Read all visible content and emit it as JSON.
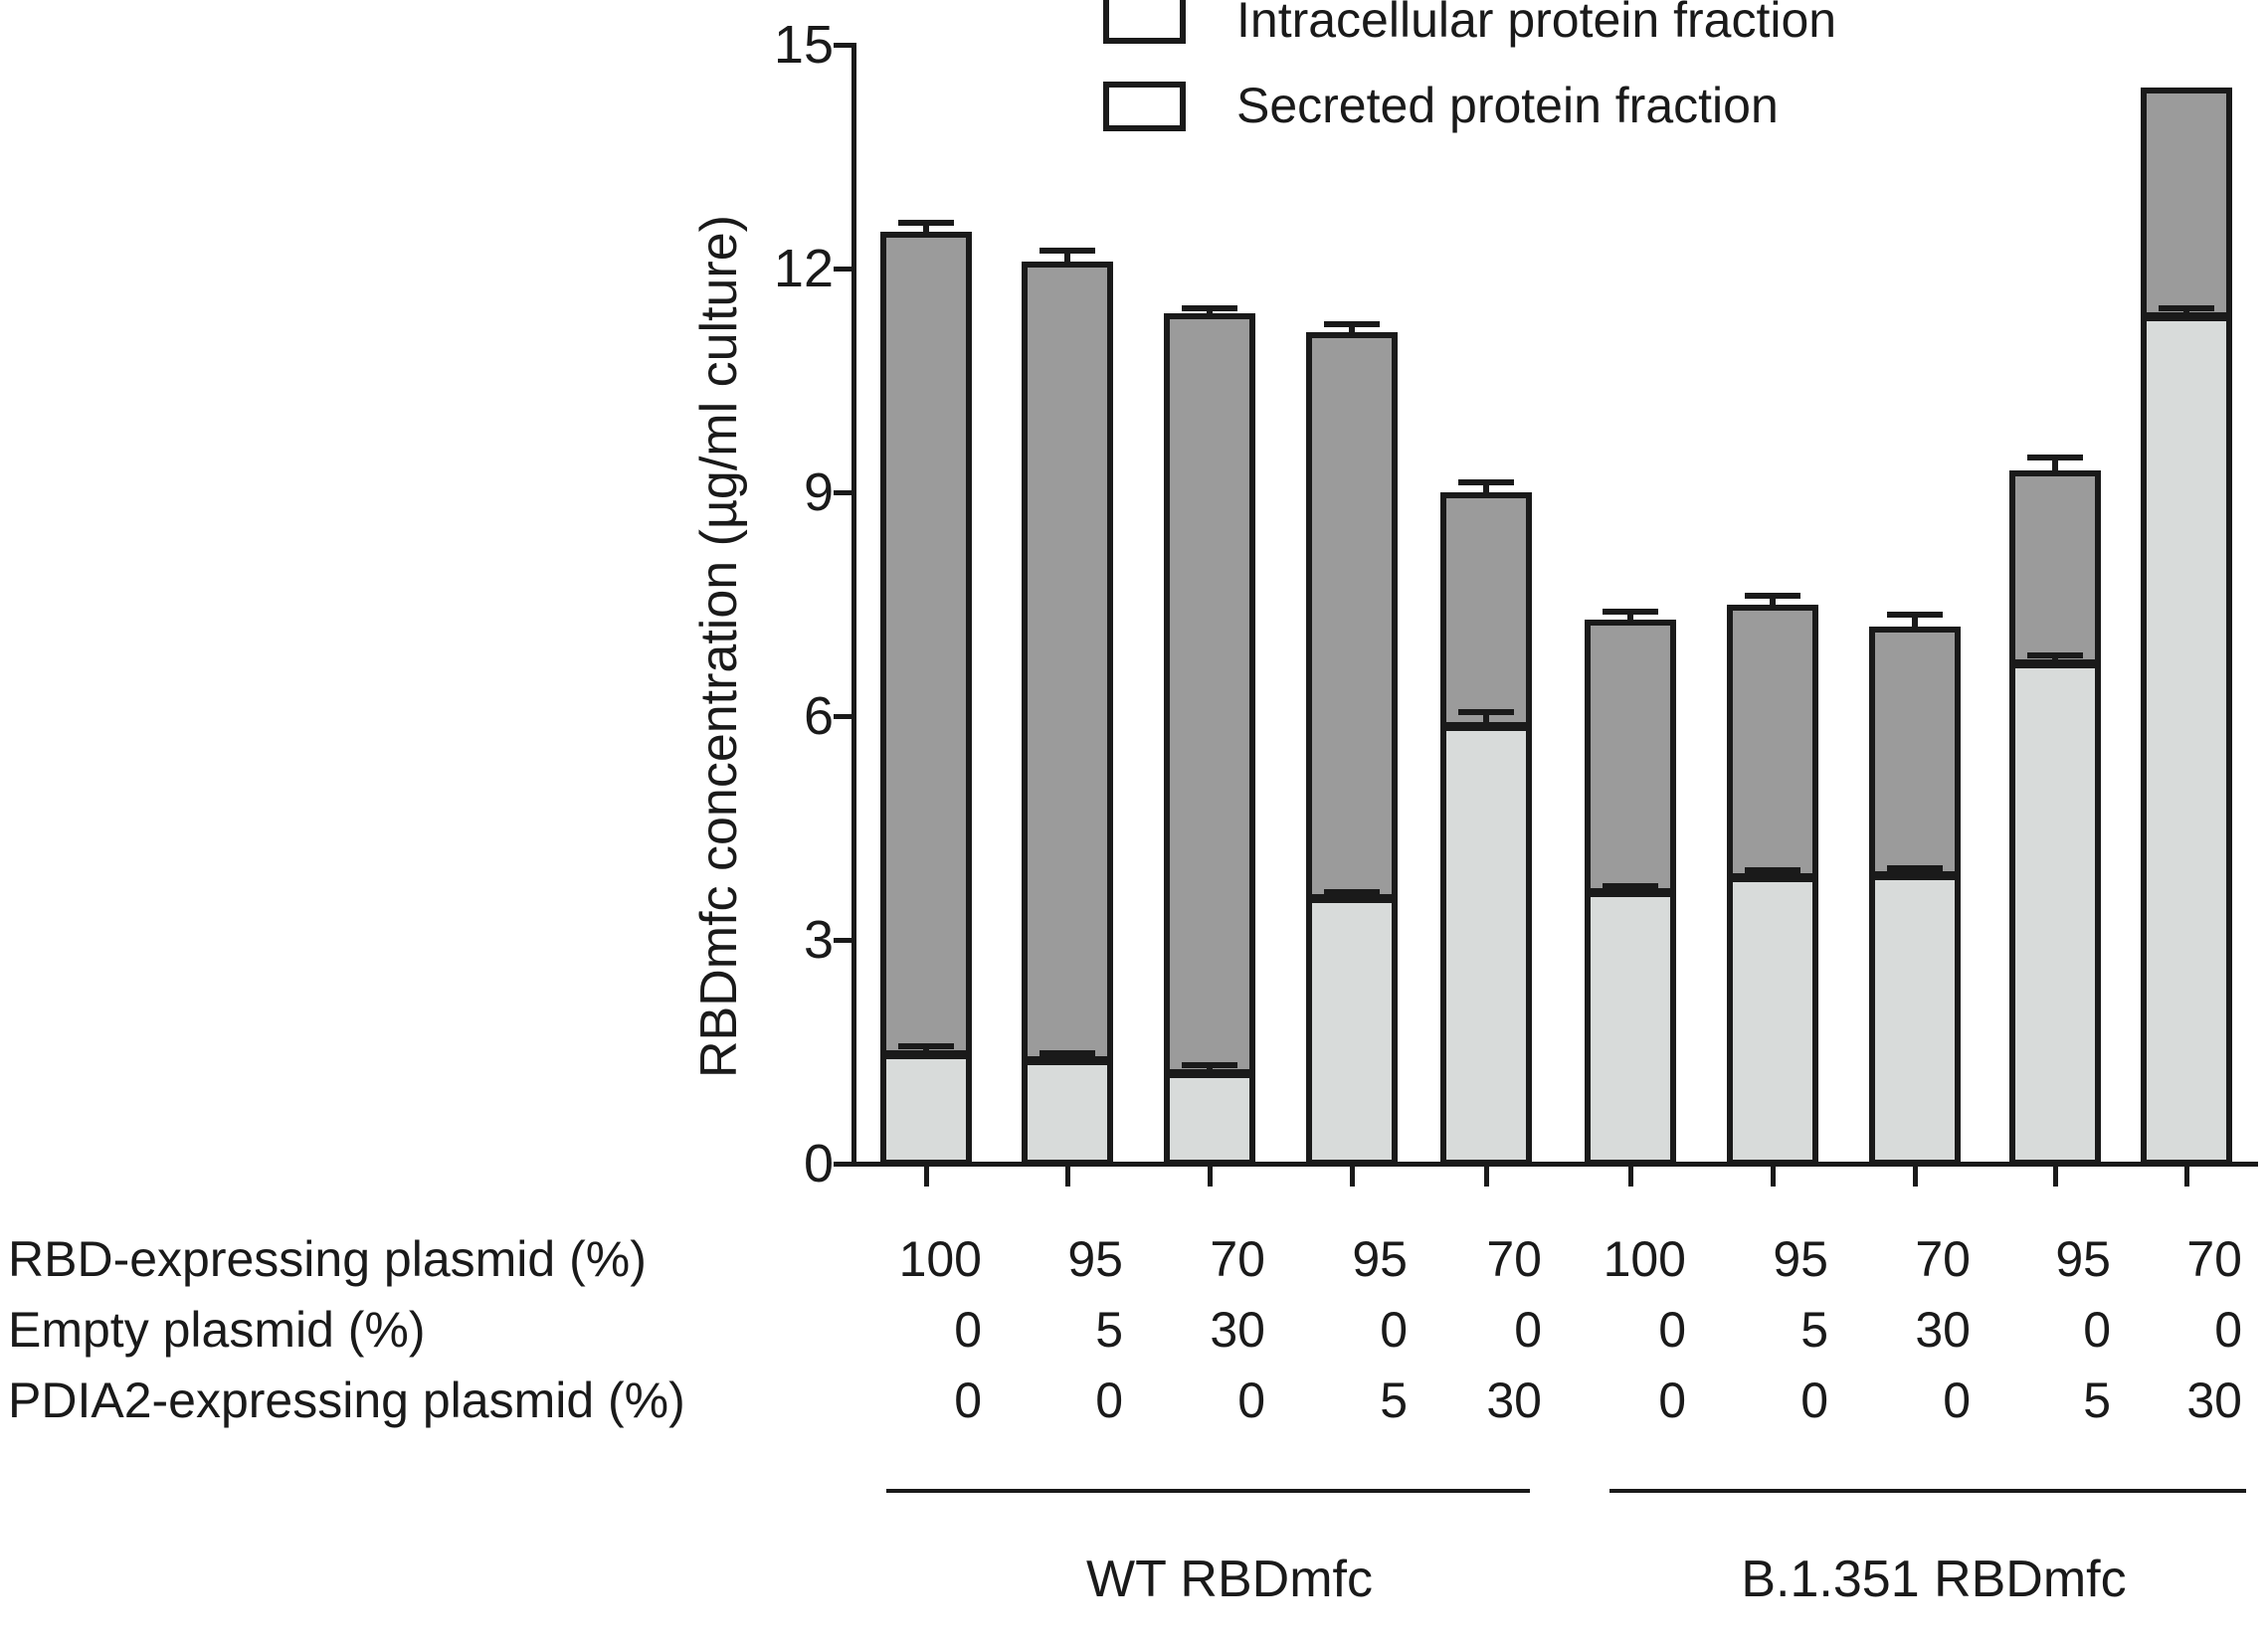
{
  "legend": {
    "items": [
      {
        "label": "Intracellular protein fraction",
        "color": "#d8dbda"
      },
      {
        "label": "Secreted protein fraction",
        "color": "#9b9b9b"
      }
    ]
  },
  "y_axis": {
    "title": "RBDmfc concentration (µg/ml culture)",
    "ticks": [
      0,
      3,
      6,
      9,
      12,
      15
    ],
    "min": 0,
    "max": 15
  },
  "x_table": {
    "rows": [
      {
        "label": "RBD-expressing plasmid (%)",
        "values": [
          "100",
          "95",
          "70",
          "95",
          "70",
          "100",
          "95",
          "70",
          "95",
          "70"
        ]
      },
      {
        "label": "Empty plasmid (%)",
        "values": [
          "0",
          "5",
          "30",
          "0",
          "0",
          "0",
          "5",
          "30",
          "0",
          "0"
        ]
      },
      {
        "label": "PDIA2-expressing plasmid (%)",
        "values": [
          "0",
          "0",
          "0",
          "5",
          "30",
          "0",
          "0",
          "0",
          "5",
          "30"
        ]
      }
    ]
  },
  "groups": [
    {
      "label": "WT RBDmfc",
      "bars": "1-5"
    },
    {
      "label": "B.1.351 RBDmfc",
      "bars": "6-10"
    }
  ],
  "chart_data": {
    "type": "bar",
    "stacked": true,
    "title": "",
    "xlabel": "",
    "ylabel": "RBDmfc concentration (µg/ml culture)",
    "ylim": [
      0,
      15
    ],
    "grid": false,
    "legend_position": "top",
    "series_names": [
      "Intracellular protein fraction",
      "Secreted protein fraction"
    ],
    "colors": {
      "intracellular": "#d8dbda",
      "secreted": "#9b9b9b",
      "outline": "#1a1a1a"
    },
    "bars": [
      {
        "rbd": "100",
        "empty": "0",
        "pdia2": "0",
        "intracellular": 1.45,
        "secreted": 11.05,
        "total": 12.5,
        "err_total": 0.08,
        "err_intra": 0.08
      },
      {
        "rbd": "95",
        "empty": "5",
        "pdia2": "0",
        "intracellular": 1.38,
        "secreted": 10.72,
        "total": 12.1,
        "err_total": 0.1,
        "err_intra": 0.06
      },
      {
        "rbd": "70",
        "empty": "30",
        "pdia2": "0",
        "intracellular": 1.2,
        "secreted": 10.2,
        "total": 11.4,
        "err_total": 0.03,
        "err_intra": 0.08
      },
      {
        "rbd": "95",
        "empty": "0",
        "pdia2": "5",
        "intracellular": 3.55,
        "secreted": 7.6,
        "total": 11.15,
        "err_total": 0.06,
        "err_intra": 0.05
      },
      {
        "rbd": "70",
        "empty": "0",
        "pdia2": "30",
        "intracellular": 5.85,
        "secreted": 3.15,
        "total": 9.0,
        "err_total": 0.1,
        "err_intra": 0.17
      },
      {
        "rbd": "100",
        "empty": "0",
        "pdia2": "0",
        "intracellular": 3.63,
        "secreted": 3.67,
        "total": 7.3,
        "err_total": 0.06,
        "err_intra": 0.05
      },
      {
        "rbd": "95",
        "empty": "5",
        "pdia2": "0",
        "intracellular": 3.83,
        "secreted": 3.67,
        "total": 7.5,
        "err_total": 0.07,
        "err_intra": 0.07
      },
      {
        "rbd": "70",
        "empty": "30",
        "pdia2": "0",
        "intracellular": 3.85,
        "secreted": 3.35,
        "total": 7.2,
        "err_total": 0.12,
        "err_intra": 0.07
      },
      {
        "rbd": "95",
        "empty": "0",
        "pdia2": "5",
        "intracellular": 6.7,
        "secreted": 2.6,
        "total": 9.3,
        "err_total": 0.13,
        "err_intra": 0.07
      },
      {
        "rbd": "70",
        "empty": "0",
        "pdia2": "30",
        "intracellular": 11.35,
        "secreted": 3.08,
        "total": 14.43,
        "err_total": 0.0,
        "err_intra": 0.08
      }
    ]
  }
}
